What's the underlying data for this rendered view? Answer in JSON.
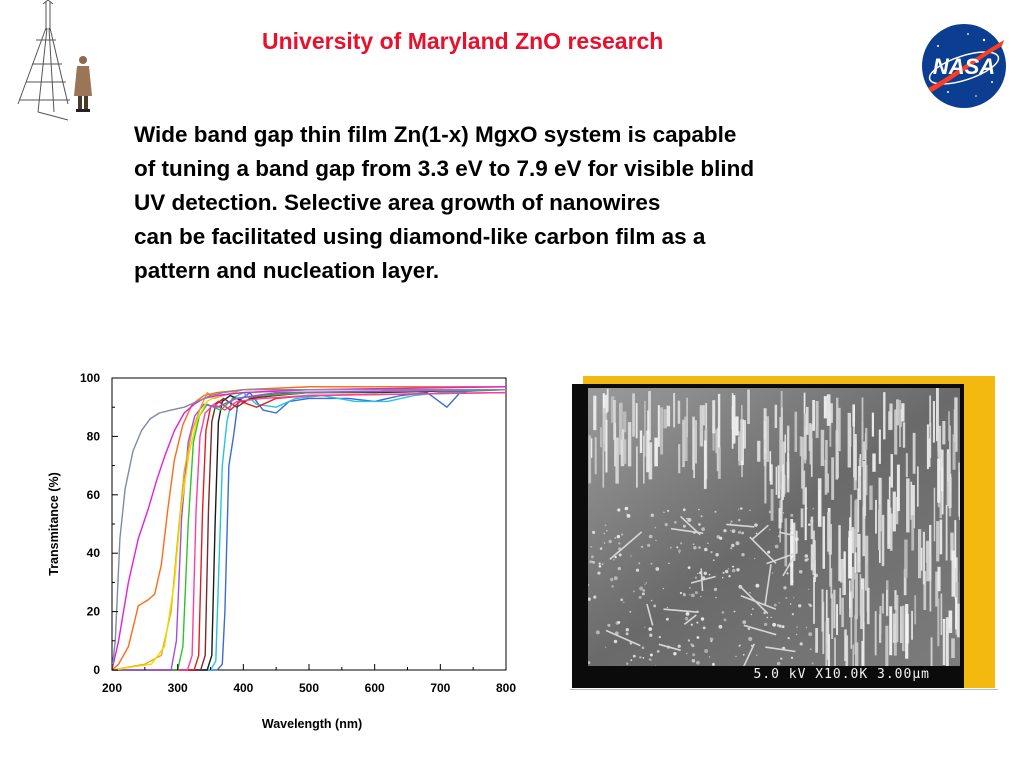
{
  "header": {
    "title": "University of Maryland ZnO research"
  },
  "body": {
    "lines": [
      "Wide band gap thin film Zn(1-x) MgxO system is capable",
      "of tuning a band gap from 3.3 eV to 7.9 eV for visible blind",
      "UV detection. Selective area growth of nanowires",
      "can be facilitated using diamond-like carbon film as a",
      "pattern and nucleation layer."
    ]
  },
  "logo": {
    "nasa_text": "NASA"
  },
  "sem": {
    "label": "5.0 kV X10.0K 3.00µm",
    "frame_color": "#f3b90f"
  },
  "chart_data": {
    "type": "line",
    "xlabel": "Wavelength (nm)",
    "ylabel": "Transmitance (%)",
    "xlim": [
      200,
      800
    ],
    "ylim": [
      0,
      100
    ],
    "x_ticks": [
      "200",
      "300",
      "400",
      "500",
      "600",
      "700",
      "800"
    ],
    "y_ticks": [
      "0",
      "20",
      "40",
      "60",
      "80",
      "100"
    ],
    "grid": false,
    "series": [
      {
        "color": "#3b6bd6",
        "points": [
          [
            200,
            0
          ],
          [
            360,
            0
          ],
          [
            368,
            2
          ],
          [
            372,
            20
          ],
          [
            378,
            70
          ],
          [
            385,
            80
          ],
          [
            392,
            92
          ],
          [
            410,
            95
          ],
          [
            430,
            89
          ],
          [
            450,
            88
          ],
          [
            470,
            92
          ],
          [
            500,
            93
          ],
          [
            560,
            93
          ],
          [
            600,
            92
          ],
          [
            640,
            94
          ],
          [
            680,
            95
          ],
          [
            710,
            90
          ],
          [
            730,
            95
          ],
          [
            760,
            96
          ],
          [
            800,
            96
          ]
        ]
      },
      {
        "color": "#23c4e0",
        "points": [
          [
            200,
            0
          ],
          [
            350,
            0
          ],
          [
            358,
            3
          ],
          [
            362,
            30
          ],
          [
            368,
            70
          ],
          [
            375,
            85
          ],
          [
            383,
            93
          ],
          [
            400,
            95
          ],
          [
            420,
            91
          ],
          [
            450,
            90
          ],
          [
            480,
            93
          ],
          [
            520,
            94
          ],
          [
            570,
            92
          ],
          [
            620,
            92
          ],
          [
            660,
            94
          ],
          [
            700,
            95
          ],
          [
            800,
            96
          ]
        ]
      },
      {
        "color": "#1a1a1a",
        "points": [
          [
            200,
            0
          ],
          [
            345,
            0
          ],
          [
            352,
            5
          ],
          [
            357,
            50
          ],
          [
            362,
            85
          ],
          [
            368,
            92
          ],
          [
            380,
            94
          ],
          [
            400,
            92
          ],
          [
            430,
            94
          ],
          [
            480,
            95
          ],
          [
            600,
            95
          ],
          [
            800,
            96
          ]
        ]
      },
      {
        "color": "#7a2a2a",
        "points": [
          [
            200,
            0
          ],
          [
            335,
            0
          ],
          [
            342,
            5
          ],
          [
            347,
            55
          ],
          [
            352,
            85
          ],
          [
            358,
            91
          ],
          [
            370,
            93
          ],
          [
            390,
            90
          ],
          [
            410,
            93
          ],
          [
            450,
            94
          ],
          [
            500,
            95
          ],
          [
            800,
            96
          ]
        ]
      },
      {
        "color": "#e02020",
        "points": [
          [
            200,
            0
          ],
          [
            325,
            0
          ],
          [
            332,
            5
          ],
          [
            338,
            55
          ],
          [
            343,
            82
          ],
          [
            350,
            90
          ],
          [
            362,
            92
          ],
          [
            380,
            89
          ],
          [
            395,
            92
          ],
          [
            420,
            90
          ],
          [
            450,
            93
          ],
          [
            500,
            94
          ],
          [
            800,
            95
          ]
        ]
      },
      {
        "color": "#ff3fa0",
        "points": [
          [
            200,
            0
          ],
          [
            315,
            0
          ],
          [
            322,
            5
          ],
          [
            328,
            55
          ],
          [
            334,
            80
          ],
          [
            342,
            88
          ],
          [
            355,
            91
          ],
          [
            372,
            89
          ],
          [
            390,
            92
          ],
          [
            430,
            93
          ],
          [
            500,
            94
          ],
          [
            800,
            95
          ]
        ]
      },
      {
        "color": "#30c030",
        "points": [
          [
            200,
            0
          ],
          [
            300,
            0
          ],
          [
            308,
            8
          ],
          [
            316,
            50
          ],
          [
            324,
            78
          ],
          [
            333,
            87
          ],
          [
            345,
            91
          ],
          [
            365,
            89
          ],
          [
            385,
            93
          ],
          [
            430,
            94
          ],
          [
            500,
            95
          ],
          [
            800,
            96
          ]
        ]
      },
      {
        "color": "#a050e0",
        "points": [
          [
            200,
            0
          ],
          [
            290,
            0
          ],
          [
            298,
            10
          ],
          [
            306,
            52
          ],
          [
            316,
            78
          ],
          [
            326,
            87
          ],
          [
            340,
            91
          ],
          [
            360,
            90
          ],
          [
            390,
            93
          ],
          [
            450,
            95
          ],
          [
            800,
            96
          ]
        ]
      },
      {
        "color": "#f0a020",
        "points": [
          [
            200,
            0
          ],
          [
            250,
            2
          ],
          [
            275,
            5
          ],
          [
            290,
            20
          ],
          [
            300,
            45
          ],
          [
            310,
            68
          ],
          [
            322,
            82
          ],
          [
            335,
            90
          ],
          [
            345,
            95
          ],
          [
            355,
            93
          ],
          [
            370,
            94
          ],
          [
            400,
            96
          ],
          [
            500,
            97
          ],
          [
            800,
            97
          ]
        ]
      },
      {
        "color": "#e6e000",
        "points": [
          [
            200,
            0
          ],
          [
            260,
            2
          ],
          [
            280,
            8
          ],
          [
            295,
            30
          ],
          [
            305,
            55
          ],
          [
            318,
            75
          ],
          [
            330,
            86
          ],
          [
            345,
            92
          ],
          [
            360,
            94
          ],
          [
            400,
            95
          ],
          [
            500,
            96
          ],
          [
            800,
            96
          ]
        ]
      },
      {
        "color": "#ff6a1a",
        "points": [
          [
            200,
            0
          ],
          [
            210,
            2
          ],
          [
            225,
            8
          ],
          [
            240,
            22
          ],
          [
            255,
            24
          ],
          [
            265,
            26
          ],
          [
            275,
            36
          ],
          [
            285,
            55
          ],
          [
            295,
            72
          ],
          [
            308,
            84
          ],
          [
            322,
            91
          ],
          [
            340,
            94
          ],
          [
            360,
            95
          ],
          [
            400,
            96
          ],
          [
            500,
            97
          ],
          [
            800,
            97
          ]
        ]
      },
      {
        "color": "#e020e0",
        "points": [
          [
            200,
            0
          ],
          [
            210,
            10
          ],
          [
            225,
            30
          ],
          [
            240,
            45
          ],
          [
            255,
            55
          ],
          [
            268,
            65
          ],
          [
            280,
            73
          ],
          [
            295,
            82
          ],
          [
            310,
            88
          ],
          [
            325,
            91
          ],
          [
            340,
            93
          ],
          [
            360,
            94
          ],
          [
            400,
            95
          ],
          [
            500,
            96
          ],
          [
            800,
            97
          ]
        ]
      },
      {
        "color": "#7d8aa8",
        "points": [
          [
            200,
            0
          ],
          [
            205,
            10
          ],
          [
            212,
            45
          ],
          [
            220,
            62
          ],
          [
            232,
            75
          ],
          [
            245,
            82
          ],
          [
            258,
            86
          ],
          [
            272,
            88
          ],
          [
            290,
            89
          ],
          [
            310,
            90
          ],
          [
            330,
            92
          ],
          [
            350,
            94
          ],
          [
            370,
            95
          ],
          [
            400,
            96
          ],
          [
            500,
            96
          ],
          [
            800,
            96
          ]
        ]
      }
    ]
  }
}
